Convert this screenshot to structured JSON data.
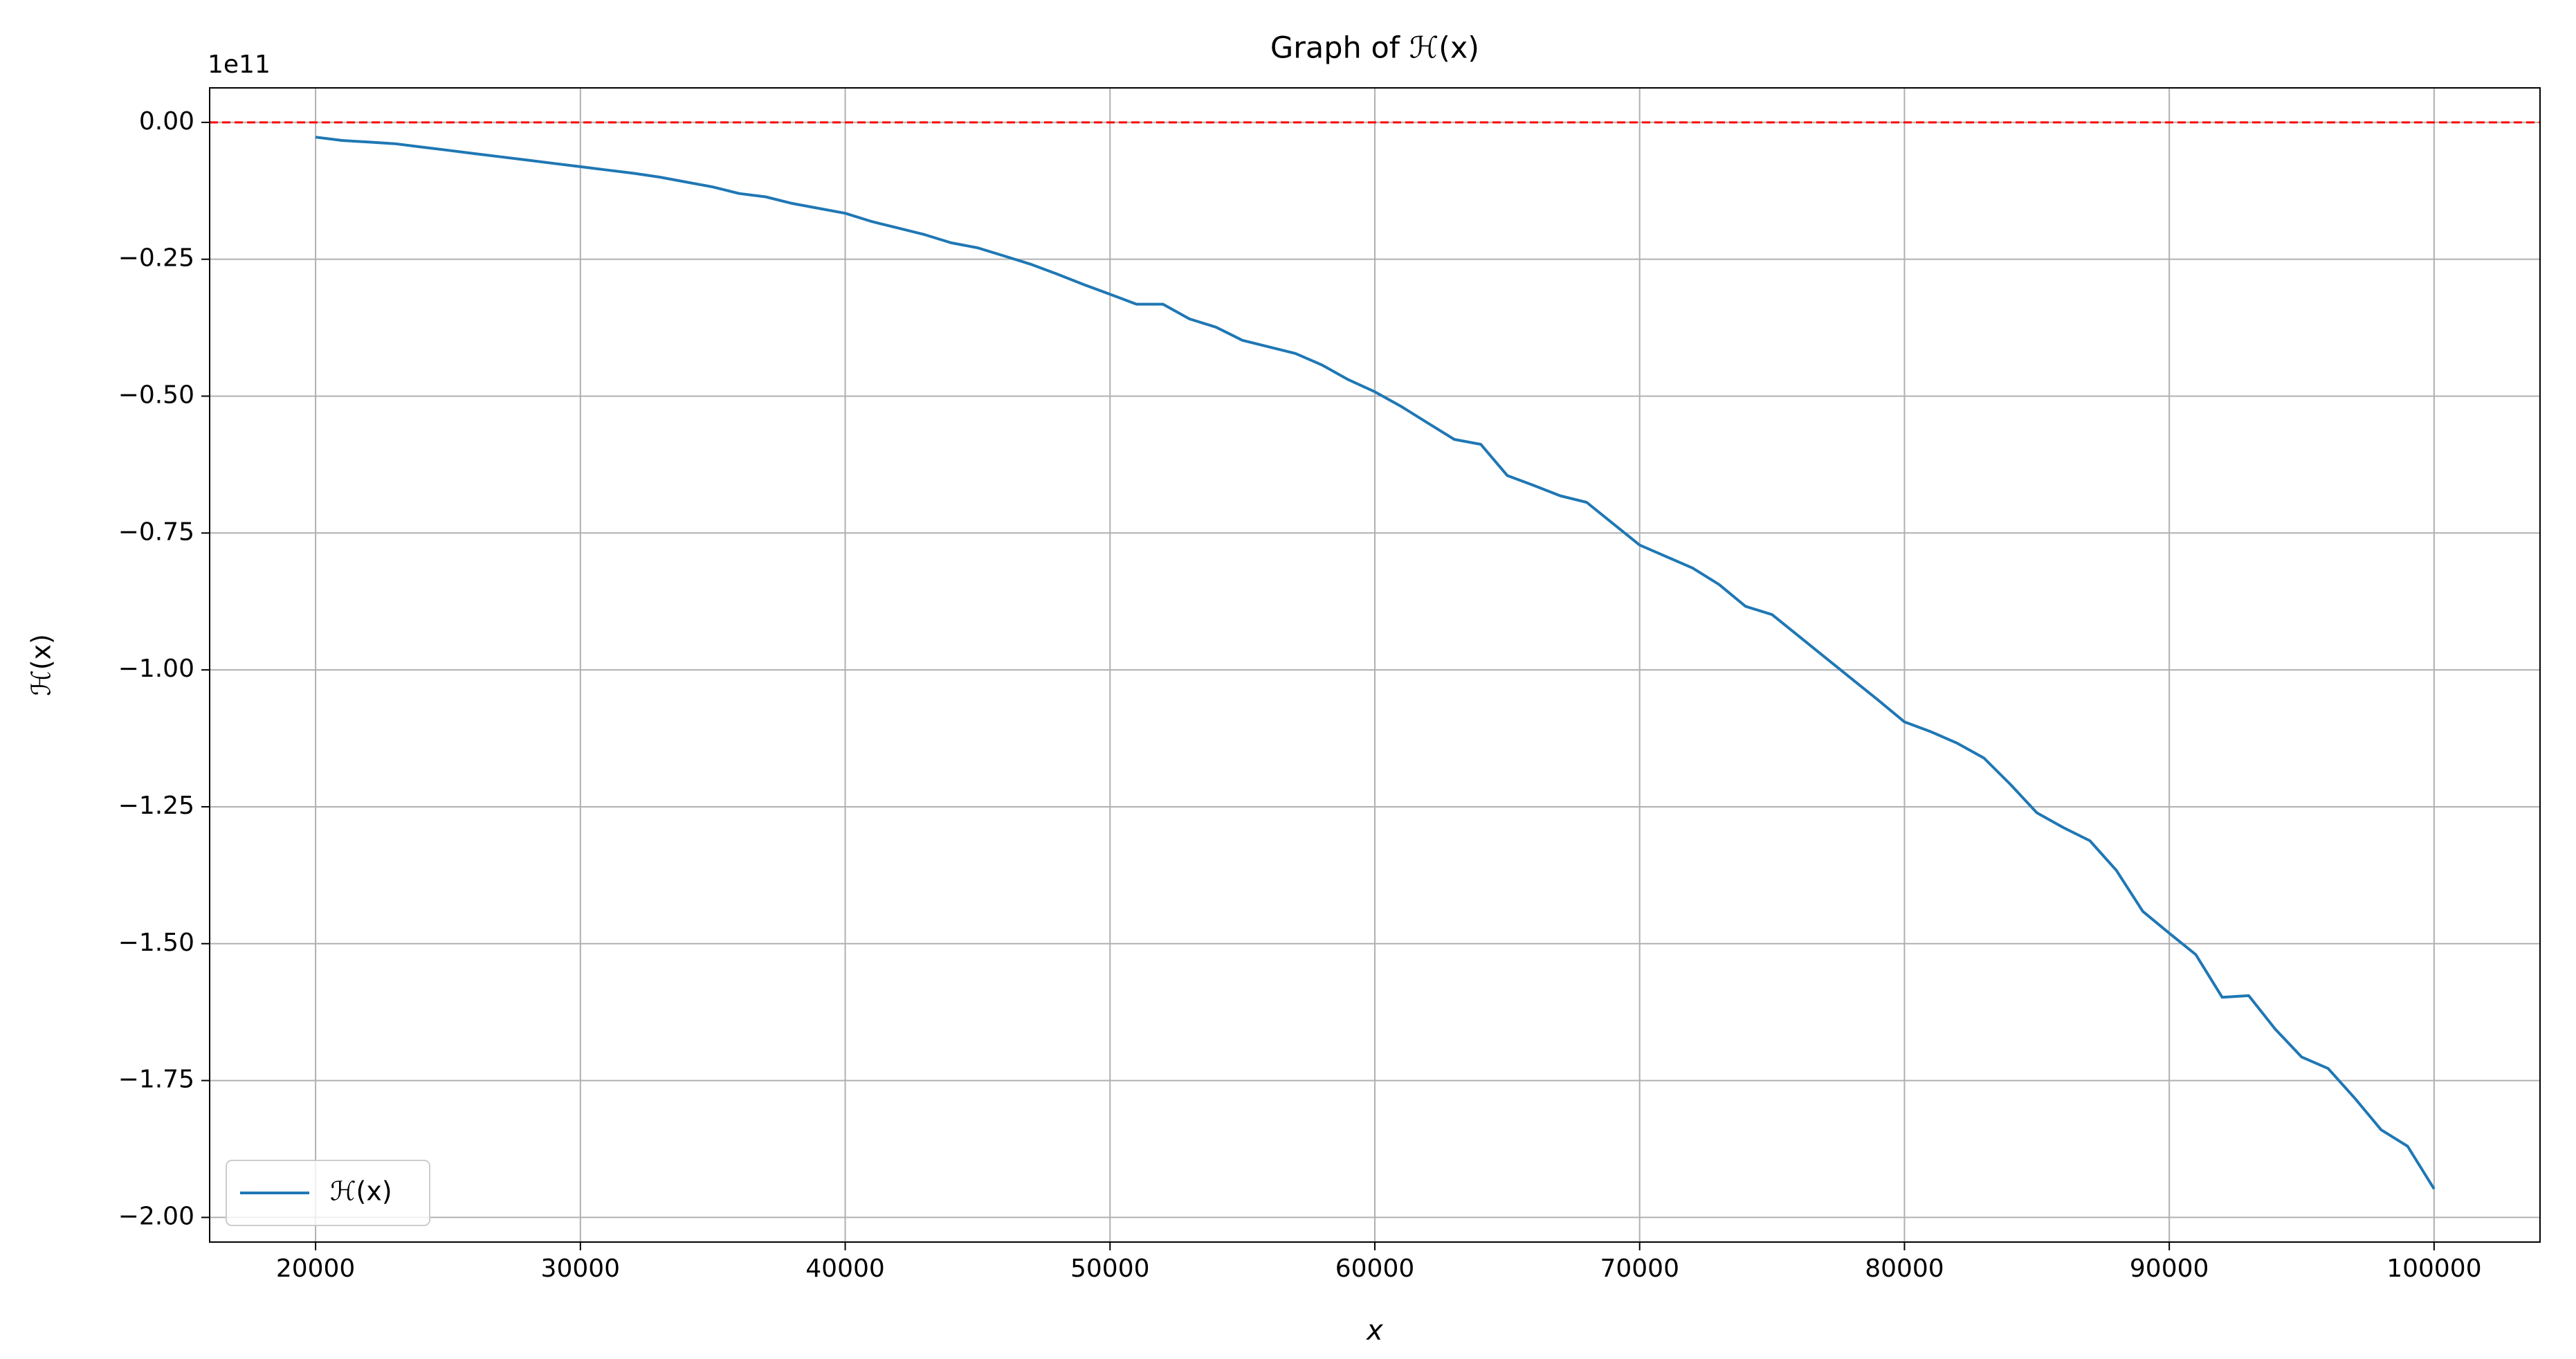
{
  "chart_data": {
    "type": "line",
    "title": "Graph of ℋ(x)",
    "xlabel": "x",
    "ylabel": "ℋ(x)",
    "y_offset_label": "1e11",
    "x": [
      20000,
      21000,
      22000,
      23000,
      24000,
      25000,
      26000,
      27000,
      28000,
      29000,
      30000,
      31000,
      32000,
      33000,
      34000,
      35000,
      36000,
      37000,
      38000,
      39000,
      40000,
      41000,
      42000,
      43000,
      44000,
      45000,
      46000,
      47000,
      48000,
      49000,
      50000,
      51000,
      52000,
      53000,
      54000,
      55000,
      56000,
      57000,
      58000,
      59000,
      60000,
      61000,
      62000,
      63000,
      64000,
      65000,
      66000,
      67000,
      68000,
      69000,
      70000,
      71000,
      72000,
      73000,
      74000,
      75000,
      76000,
      77000,
      78000,
      79000,
      80000,
      81000,
      82000,
      83000,
      84000,
      85000,
      86000,
      87000,
      88000,
      89000,
      90000,
      91000,
      92000,
      93000,
      94000,
      95000,
      96000,
      97000,
      98000,
      99000,
      100000
    ],
    "series": [
      {
        "name": "ℋ(x)",
        "color": "#1f77b4",
        "values": [
          -0.027,
          -0.033,
          -0.036,
          -0.039,
          -0.045,
          -0.051,
          -0.057,
          -0.063,
          -0.069,
          -0.075,
          -0.081,
          -0.087,
          -0.093,
          -0.1,
          -0.109,
          -0.118,
          -0.13,
          -0.136,
          -0.148,
          -0.157,
          -0.166,
          -0.181,
          -0.193,
          -0.205,
          -0.22,
          -0.229,
          -0.244,
          -0.259,
          -0.277,
          -0.296,
          -0.314,
          -0.332,
          -0.332,
          -0.359,
          -0.374,
          -0.398,
          -0.41,
          -0.422,
          -0.443,
          -0.47,
          -0.492,
          -0.519,
          -0.549,
          -0.579,
          -0.588,
          -0.645,
          -0.663,
          -0.682,
          -0.694,
          -0.733,
          -0.772,
          -0.793,
          -0.814,
          -0.844,
          -0.884,
          -0.899,
          -0.938,
          -0.977,
          -1.016,
          -1.055,
          -1.095,
          -1.113,
          -1.134,
          -1.161,
          -1.209,
          -1.261,
          -1.288,
          -1.312,
          -1.366,
          -1.441,
          -1.481,
          -1.52,
          -1.598,
          -1.595,
          -1.656,
          -1.707,
          -1.728,
          -1.782,
          -1.84,
          -1.87,
          -1.948
        ]
      }
    ],
    "hline": {
      "y": 0,
      "color": "#ff0000"
    },
    "xlim": [
      16000,
      104000
    ],
    "xticks": [
      20000,
      30000,
      40000,
      50000,
      60000,
      70000,
      80000,
      90000,
      100000
    ],
    "ylim": [
      -2.045,
      0.063
    ],
    "yticks": [
      {
        "value": 0,
        "label": "0.00"
      },
      {
        "value": -0.25,
        "label": "−0.25"
      },
      {
        "value": -0.5,
        "label": "−0.50"
      },
      {
        "value": -0.75,
        "label": "−0.75"
      },
      {
        "value": -1,
        "label": "−1.00"
      },
      {
        "value": -1.25,
        "label": "−1.25"
      },
      {
        "value": -1.5,
        "label": "−1.50"
      },
      {
        "value": -1.75,
        "label": "−1.75"
      },
      {
        "value": -2,
        "label": "−2.00"
      }
    ],
    "grid": true,
    "legend": "lower left"
  }
}
